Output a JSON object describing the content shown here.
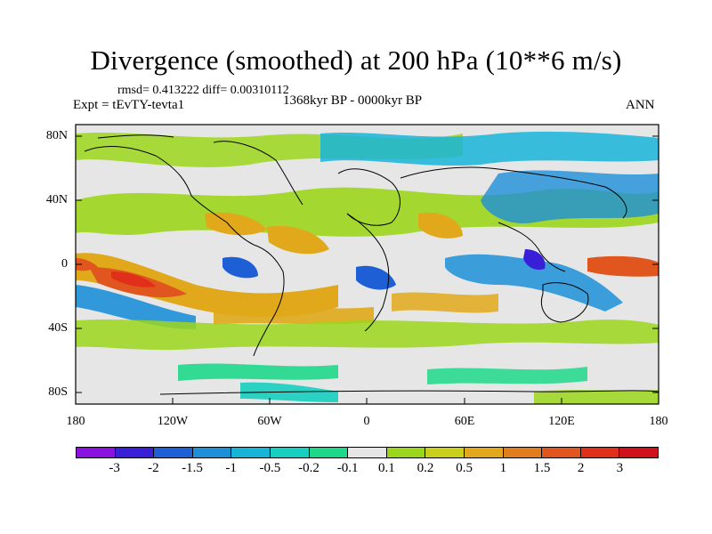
{
  "title": "Divergence (smoothed) at 200 hPa (10**6 m/s)",
  "stats_text": "rmsd= 0.413222 diff= 0.00310112",
  "experiment": "Expt = tEvTY-tevta1",
  "period": "1368kyr BP - 0000kyr BP",
  "season": "ANN",
  "lat_ticks": [
    "80N",
    "40N",
    "0",
    "40S",
    "80S"
  ],
  "lon_ticks": [
    "180",
    "120W",
    "60W",
    "0",
    "60E",
    "120E",
    "180"
  ],
  "colorbar": {
    "labels": [
      "-3",
      "-2",
      "-1.5",
      "-1",
      "-0.5",
      "-0.2",
      "-0.1",
      "0.1",
      "0.2",
      "0.5",
      "1",
      "1.5",
      "2",
      "3"
    ],
    "colors": [
      "#8a12e0",
      "#3a1fd8",
      "#1f5fd6",
      "#1d8fd8",
      "#18b4d8",
      "#16cfc0",
      "#1ed88a",
      "#e6e6e6",
      "#9cd61c",
      "#c9cf1a",
      "#e0a81a",
      "#e07d1e",
      "#e0561e",
      "#e0301c",
      "#d0101a"
    ]
  }
}
